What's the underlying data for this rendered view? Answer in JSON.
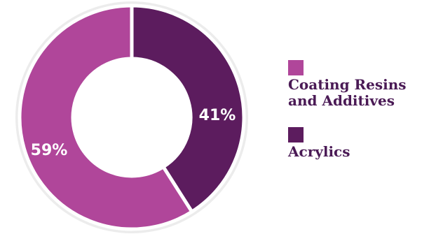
{
  "chart_data": {
    "type": "pie",
    "donut": true,
    "categories": [
      "Coating Resins and Additives",
      "Acrylics"
    ],
    "values": [
      59,
      41
    ],
    "value_labels": [
      "59%",
      "41%"
    ],
    "colors": [
      "#b0469a",
      "#5c1c5e"
    ],
    "ring_background": "#ececec",
    "title": "",
    "legend_position": "right"
  },
  "legend": {
    "items": [
      {
        "label_line1": "Coating Resins",
        "label_line2": "and Additives",
        "color": "#b0469a"
      },
      {
        "label_line1": "Acrylics",
        "label_line2": "",
        "color": "#5c1c5e"
      }
    ]
  }
}
